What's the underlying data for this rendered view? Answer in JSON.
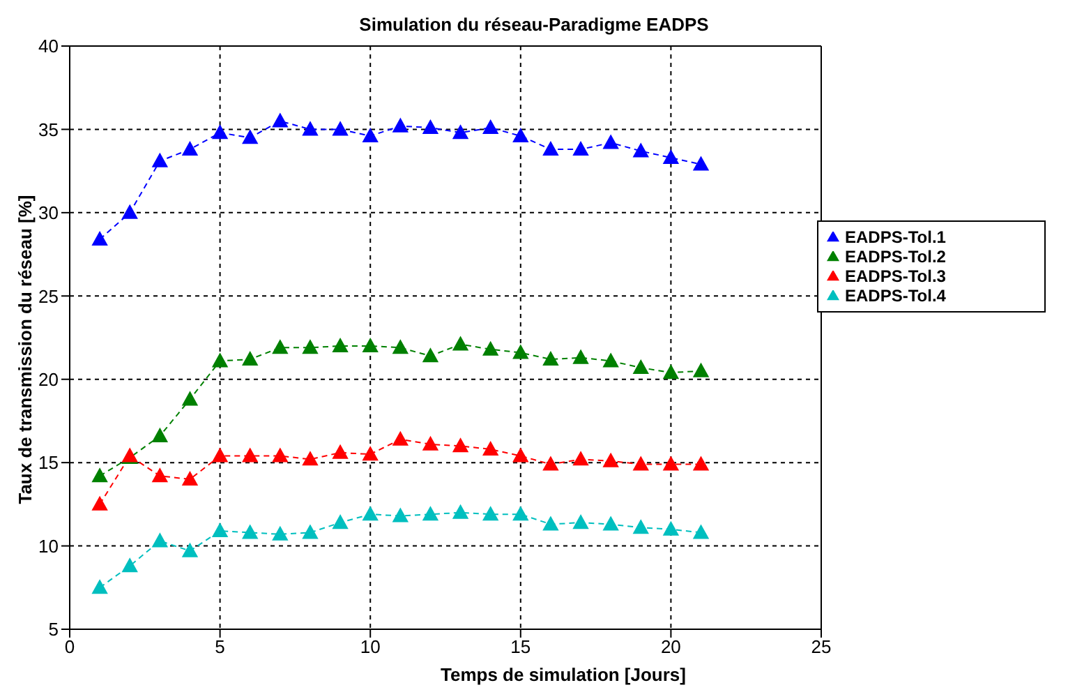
{
  "chart_data": {
    "type": "line",
    "title": "Simulation du réseau-Paradigme EADPS",
    "xlabel": "Temps de simulation [Jours]",
    "ylabel": "Taux de transmission du réseau [%]",
    "x": [
      1,
      2,
      3,
      4,
      5,
      6,
      7,
      8,
      9,
      10,
      11,
      12,
      13,
      14,
      15,
      16,
      17,
      18,
      19,
      20,
      21
    ],
    "series": [
      {
        "name": "EADPS-Tol.1",
        "color": "#0000ff",
        "values": [
          28.4,
          30.0,
          33.1,
          33.8,
          34.8,
          34.5,
          35.5,
          35.0,
          35.0,
          34.6,
          35.2,
          35.1,
          34.8,
          35.1,
          34.6,
          33.8,
          33.8,
          34.2,
          33.7,
          33.3,
          32.9
        ]
      },
      {
        "name": "EADPS-Tol.2",
        "color": "#008000",
        "values": [
          14.2,
          15.3,
          16.6,
          18.8,
          21.1,
          21.2,
          21.9,
          21.9,
          22.0,
          22.0,
          21.9,
          21.4,
          22.1,
          21.8,
          21.6,
          21.2,
          21.3,
          21.1,
          20.7,
          20.4,
          20.5
        ]
      },
      {
        "name": "EADPS-Tol.3",
        "color": "#ff0000",
        "values": [
          12.5,
          15.4,
          14.2,
          14.0,
          15.4,
          15.4,
          15.4,
          15.2,
          15.6,
          15.5,
          16.4,
          16.1,
          16.0,
          15.8,
          15.4,
          14.9,
          15.2,
          15.1,
          14.9,
          14.9,
          14.9
        ]
      },
      {
        "name": "EADPS-Tol.4",
        "color": "#00bfbf",
        "values": [
          7.5,
          8.8,
          10.3,
          9.7,
          10.9,
          10.8,
          10.7,
          10.8,
          11.4,
          11.9,
          11.8,
          11.9,
          12.0,
          11.9,
          11.9,
          11.3,
          11.4,
          11.3,
          11.1,
          11.0,
          10.8
        ]
      }
    ],
    "xlim": [
      0,
      25
    ],
    "xticks": [
      0,
      5,
      10,
      15,
      20,
      25
    ],
    "ylim": [
      5,
      40
    ],
    "yticks": [
      5,
      10,
      15,
      20,
      25,
      30,
      35,
      40
    ],
    "grid": true,
    "legend": "right",
    "marker": "triangle",
    "line_style": "dashed"
  }
}
